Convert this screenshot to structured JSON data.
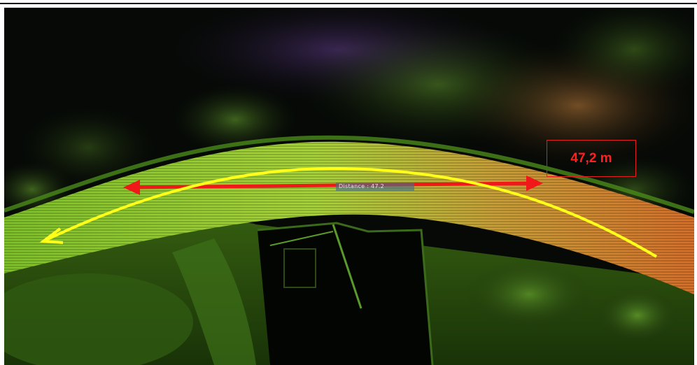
{
  "image": {
    "description": "Top-down LiDAR point cloud of a curved road through dark vegetation with annotation overlays",
    "measurement_label": "47,2 m",
    "distance_tag": "Distance : 47.2",
    "colors": {
      "straight_arrow": "#f01818",
      "curve_arrow": "#ffff1a",
      "road_green": "#8fd330",
      "road_orange": "#d97a2c",
      "background": "#050805"
    },
    "icons": [
      "double-headed-arrow-icon",
      "curved-arrow-icon"
    ]
  }
}
